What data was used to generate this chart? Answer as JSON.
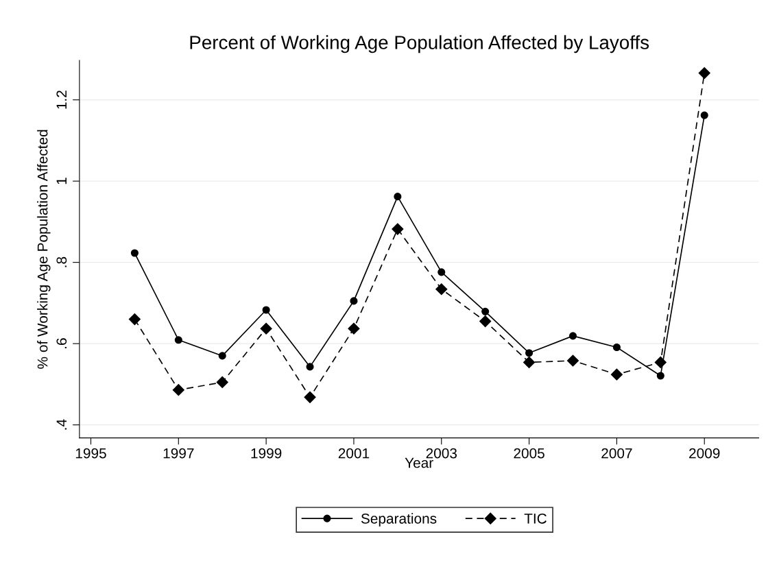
{
  "chart_data": {
    "type": "line",
    "title": "Percent of Working Age Population Affected by Layoffs",
    "xlabel": "Year",
    "ylabel": "% of Working Age Population Affected",
    "x": [
      1996,
      1997,
      1998,
      1999,
      2000,
      2001,
      2002,
      2003,
      2004,
      2005,
      2006,
      2007,
      2008,
      2009
    ],
    "series": [
      {
        "name": "Separations",
        "color": "#000000",
        "marker": "circle",
        "line_style": "solid",
        "values": [
          0.823,
          0.609,
          0.57,
          0.683,
          0.543,
          0.705,
          0.962,
          0.776,
          0.679,
          0.577,
          0.619,
          0.591,
          0.521,
          1.162
        ]
      },
      {
        "name": "TIC",
        "color": "#000000",
        "marker": "diamond",
        "line_style": "dashed",
        "values": [
          0.66,
          0.486,
          0.505,
          0.637,
          0.468,
          0.637,
          0.882,
          0.734,
          0.655,
          0.554,
          0.558,
          0.524,
          0.554,
          1.266
        ]
      }
    ],
    "xlim": [
      1994.74,
      2010.24
    ],
    "xticks": [
      1995,
      1997,
      1999,
      2001,
      2003,
      2005,
      2007,
      2009
    ],
    "ylim": [
      0.368,
      1.297
    ],
    "yticks": [
      {
        "value": 0.4,
        "label": ".4"
      },
      {
        "value": 0.6,
        "label": ".6"
      },
      {
        "value": 0.8,
        "label": ".8"
      },
      {
        "value": 1,
        "label": "1"
      },
      {
        "value": 1.2,
        "label": "1.2"
      }
    ],
    "grid": "y",
    "legend": "bottom"
  }
}
